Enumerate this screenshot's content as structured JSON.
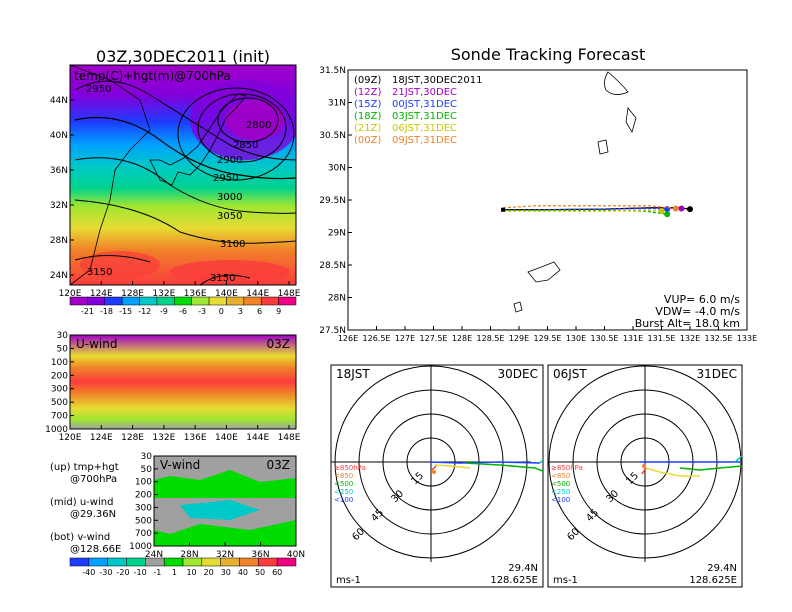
{
  "colors": {
    "temp_scale": [
      "#a000c8",
      "#8200dc",
      "#1e3cff",
      "#00a0ff",
      "#00c8c8",
      "#00d28c",
      "#00dc00",
      "#a0e632",
      "#e6dc32",
      "#e6af2d",
      "#f08228",
      "#fa3c3c",
      "#f00082"
    ],
    "wind_scale": [
      "#1e3cff",
      "#00a0ff",
      "#00c8c8",
      "#00d28c",
      "#a0a0a0",
      "#00dc00",
      "#a0e632",
      "#e6dc32",
      "#e6af2d",
      "#f08228",
      "#fa3c3c",
      "#f00082"
    ],
    "track_09z": "#000000",
    "track_12z": "#a000c8",
    "track_15z": "#1e3cff",
    "track_18z": "#00b400",
    "track_21z": "#c8c800",
    "track_00z": "#f08228"
  },
  "left_top": {
    "title": "03Z,30DEC2011 (init)",
    "panel_label": "temp(C)+hgt(m)@700hPa",
    "y_ticks": [
      "44N",
      "40N",
      "36N",
      "32N",
      "28N",
      "24N"
    ],
    "x_ticks": [
      "120E",
      "124E",
      "128E",
      "132E",
      "136E",
      "140E",
      "144E",
      "148E"
    ],
    "contours": [
      "2950",
      "2800",
      "2850",
      "2900",
      "2950",
      "3000",
      "3050",
      "3100",
      "3150",
      "3150"
    ],
    "colorbar_ticks": [
      "-21",
      "-18",
      "-15",
      "-12",
      "-9",
      "-6",
      "-3",
      "0",
      "3",
      "6",
      "9"
    ]
  },
  "left_mid": {
    "panel_label": "U-wind",
    "time_label": "03Z",
    "y_ticks": [
      "30",
      "50",
      "100",
      "200",
      "300",
      "500",
      "700",
      "1000"
    ],
    "x_ticks": [
      "120E",
      "124E",
      "128E",
      "132E",
      "136E",
      "140E",
      "144E",
      "148E"
    ]
  },
  "left_bot": {
    "panel_label": "V-wind",
    "time_label": "03Z",
    "y_ticks": [
      "30",
      "50",
      "100",
      "200",
      "300",
      "500",
      "700",
      "1000"
    ],
    "x_ticks": [
      "24N",
      "28N",
      "32N",
      "36N",
      "40N"
    ],
    "colorbar_ticks": [
      "-40",
      "-30",
      "-20",
      "-10",
      "-1",
      "1",
      "10",
      "20",
      "30",
      "40",
      "50",
      "60"
    ]
  },
  "legend_notes": [
    {
      "a": "(up) tmp+hgt",
      "b": "@700hPa"
    },
    {
      "a": "(mid) u-wind",
      "b": "@29.36N"
    },
    {
      "a": "(bot) v-wind",
      "b": "@128.66E"
    }
  ],
  "main": {
    "title": "Sonde Tracking Forecast",
    "legend": [
      {
        "code": "(09Z)",
        "text": "18JST,30DEC2011",
        "color": "#000000"
      },
      {
        "code": "(12Z)",
        "text": "21JST,30DEC",
        "color": "#a000c8"
      },
      {
        "code": "(15Z)",
        "text": "00JST,31DEC",
        "color": "#1e3cff"
      },
      {
        "code": "(18Z)",
        "text": "03JST,31DEC",
        "color": "#00b400"
      },
      {
        "code": "(21Z)",
        "text": "06JST,31DEC",
        "color": "#c8c800"
      },
      {
        "code": "(00Z)",
        "text": "09JST,31DEC",
        "color": "#f08228"
      }
    ],
    "y_ticks": [
      "31.5N",
      "31N",
      "30.5N",
      "30N",
      "29.5N",
      "29N",
      "28.5N",
      "28N",
      "27.5N"
    ],
    "x_ticks": [
      "126E",
      "126.5E",
      "127E",
      "127.5E",
      "128E",
      "128.5E",
      "129E",
      "129.5E",
      "130E",
      "130.5E",
      "131E",
      "131.5E",
      "132E",
      "132.5E",
      "133E"
    ],
    "params": [
      "VUP= 6.0 m/s",
      "VDW= -4.0 m/s",
      "Burst Alt= 18.0 km"
    ]
  },
  "polar_left": {
    "tl": "18JST",
    "tr": "30DEC",
    "ring_labels": [
      "15",
      "30",
      "45",
      "60"
    ],
    "levels": [
      "≥850hPa",
      "<850",
      "<500",
      "<250",
      "<100"
    ],
    "unit": "ms-1",
    "lat": "29.4N",
    "lon": "128.625E"
  },
  "polar_right": {
    "tl": "06JST",
    "tr": "31DEC",
    "ring_labels": [
      "15",
      "30",
      "45",
      "60"
    ],
    "levels": [
      "≥850hPa",
      "<850",
      "<500",
      "<250",
      "<100"
    ],
    "unit": "ms-1",
    "lat": "29.4N",
    "lon": "128.625E"
  },
  "chart_data": {
    "type": "line",
    "title": "Sonde Tracking Forecast",
    "xlim": [
      126,
      133
    ],
    "ylim": [
      27.5,
      31.5
    ],
    "x_units": "deg E",
    "y_units": "deg N",
    "series": [
      {
        "name": "(09Z) 18JST,30DEC2011",
        "x": [
          128.72,
          129.5,
          130.5,
          131.3,
          131.8,
          132.0
        ],
        "y": [
          29.35,
          29.35,
          29.36,
          29.38,
          29.38,
          29.36
        ]
      },
      {
        "name": "(12Z) 21JST,30DEC",
        "x": [
          128.72,
          129.5,
          130.5,
          131.3,
          131.85
        ],
        "y": [
          29.33,
          29.34,
          29.36,
          29.37,
          29.37
        ]
      },
      {
        "name": "(15Z) 00JST,31DEC",
        "x": [
          128.72,
          129.5,
          130.5,
          131.3,
          131.6
        ],
        "y": [
          29.34,
          29.35,
          29.36,
          29.37,
          29.36
        ]
      },
      {
        "name": "(18Z) 03JST,31DEC",
        "x": [
          128.72,
          129.5,
          130.5,
          131.2,
          131.6
        ],
        "y": [
          29.34,
          29.34,
          29.34,
          29.33,
          29.28
        ]
      },
      {
        "name": "(21Z) 06JST,31DEC",
        "x": [
          128.72,
          129.5,
          130.5,
          131.3,
          131.5
        ],
        "y": [
          29.33,
          29.33,
          29.33,
          29.34,
          29.33
        ]
      },
      {
        "name": "(00Z) 09JST,31DEC",
        "x": [
          128.72,
          129.3,
          130.5,
          131.3,
          131.75
        ],
        "y": [
          29.38,
          29.41,
          29.41,
          29.41,
          29.37
        ]
      }
    ],
    "params": {
      "vup_m_s": 6.0,
      "vdw_m_s": -4.0,
      "burst_alt_km": 18.0
    }
  }
}
